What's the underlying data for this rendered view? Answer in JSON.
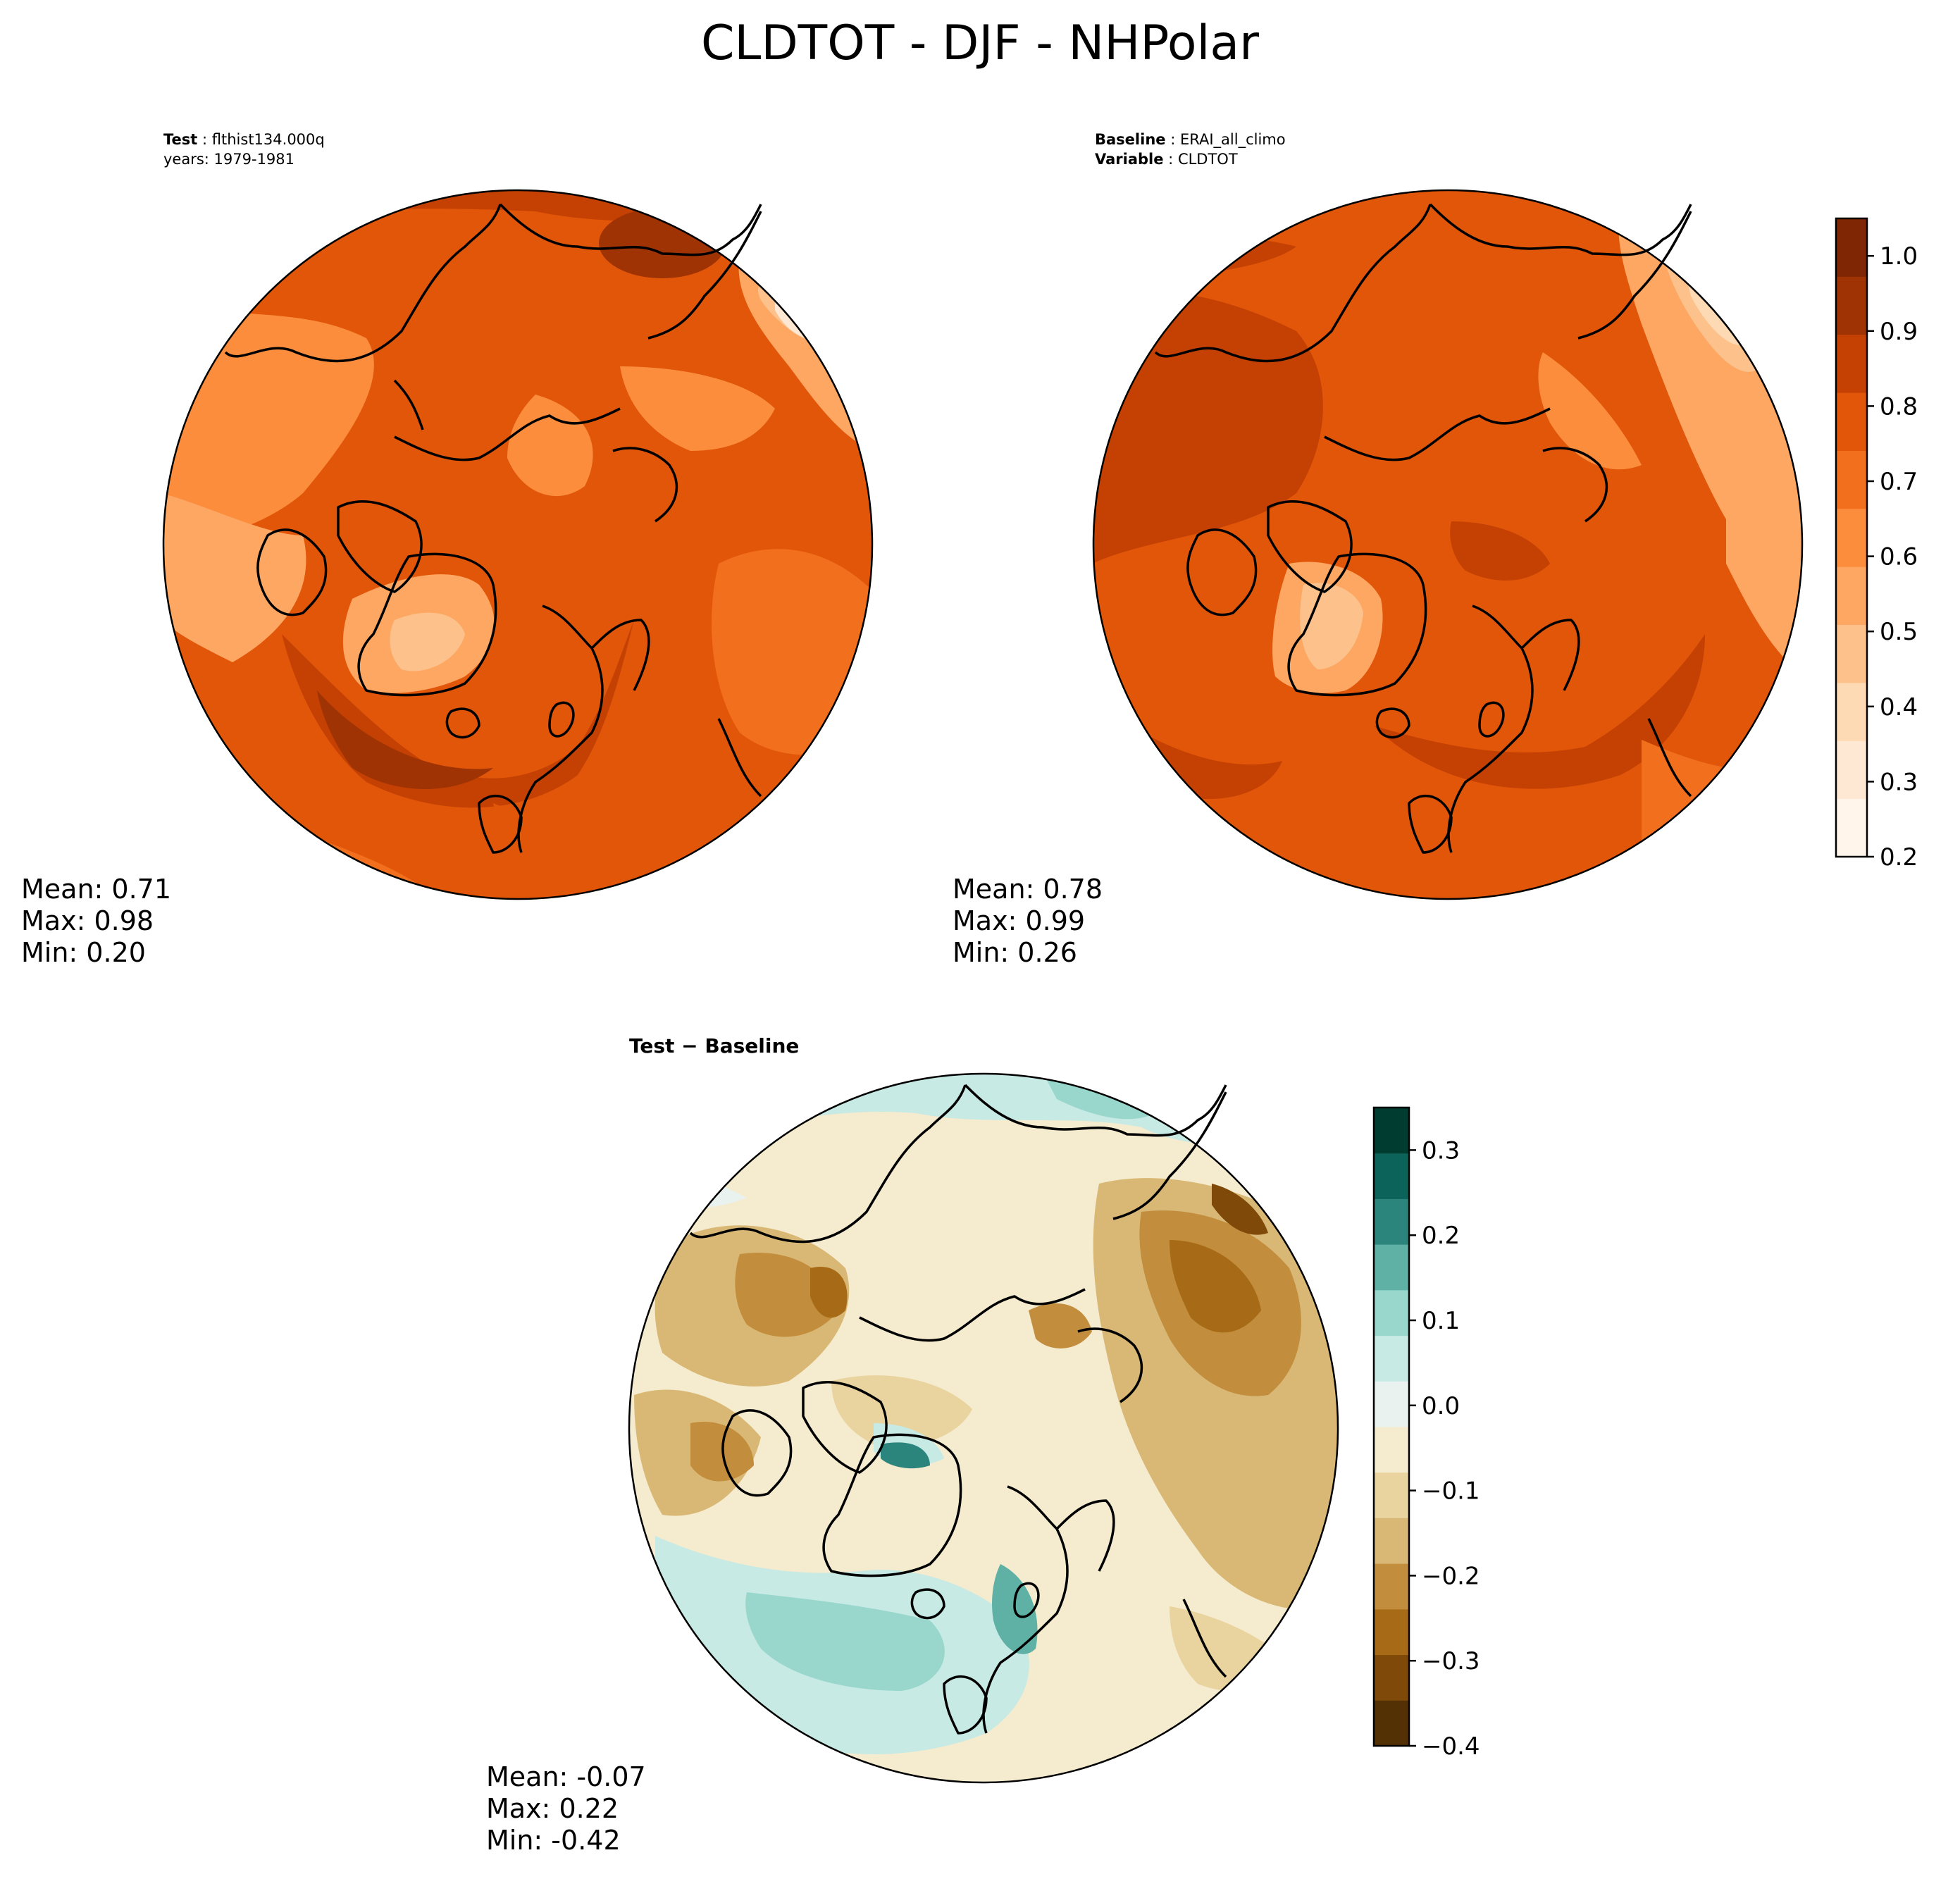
{
  "title": "CLDTOT - DJF - NHPolar",
  "panels": {
    "test": {
      "label_key": "Test",
      "label_value": "flthist134.000q",
      "years": "years: 1979-1981",
      "stats": [
        "Mean:  0.71",
        "Max:  0.98",
        "Min:  0.20"
      ]
    },
    "baseline": {
      "label_key": "Baseline",
      "label_value": "ERAI_all_climo",
      "variable_key": "Variable",
      "variable_value": "CLDTOT",
      "stats": [
        "Mean:  0.78",
        "Max:  0.99",
        "Min:  0.26"
      ]
    },
    "diff": {
      "title": "Test − Baseline",
      "stats": [
        "Mean: -0.07",
        "Max:  0.22",
        "Min: -0.42"
      ]
    }
  },
  "colorbars": {
    "main": {
      "ticks": [
        "0.2",
        "0.3",
        "0.4",
        "0.5",
        "0.6",
        "0.7",
        "0.8",
        "0.9",
        "1.0"
      ],
      "colors": [
        "#fff5eb",
        "#fee8d3",
        "#fdd9b4",
        "#fdc28c",
        "#fda762",
        "#fb8d3d",
        "#f2701d",
        "#e25609",
        "#c44103",
        "#9f3303",
        "#7f2704"
      ]
    },
    "diff": {
      "ticks": [
        "−0.4",
        "−0.3",
        "−0.2",
        "−0.1",
        "0.0",
        "0.1",
        "0.2",
        "0.3"
      ],
      "colors": [
        "#543005",
        "#7f4909",
        "#a76b17",
        "#c28d3c",
        "#d9b875",
        "#e9d39f",
        "#f5ebce",
        "#eaf2f0",
        "#c7eae5",
        "#99d7cc",
        "#5fb1a6",
        "#2b857d",
        "#0c6359",
        "#003c30"
      ]
    }
  },
  "chart_data": [
    {
      "type": "heatmap",
      "title": "Test : flthist134.000q",
      "subtitle": "years: 1979-1981",
      "variable": "CLDTOT",
      "season": "DJF",
      "region": "NHPolar",
      "projection": "north polar stereographic",
      "colormap": "Oranges",
      "clim": [
        0.2,
        1.0
      ],
      "stats": {
        "mean": 0.71,
        "max": 0.98,
        "min": 0.2
      }
    },
    {
      "type": "heatmap",
      "title": "Baseline : ERAI_all_climo",
      "subtitle": "Variable : CLDTOT",
      "projection": "north polar stereographic",
      "colormap": "Oranges",
      "clim": [
        0.2,
        1.0
      ],
      "stats": {
        "mean": 0.78,
        "max": 0.99,
        "min": 0.26
      }
    },
    {
      "type": "heatmap",
      "title": "Test − Baseline",
      "projection": "north polar stereographic",
      "colormap": "BrBG",
      "clim": [
        -0.4,
        0.35
      ],
      "stats": {
        "mean": -0.07,
        "max": 0.22,
        "min": -0.42
      }
    }
  ]
}
